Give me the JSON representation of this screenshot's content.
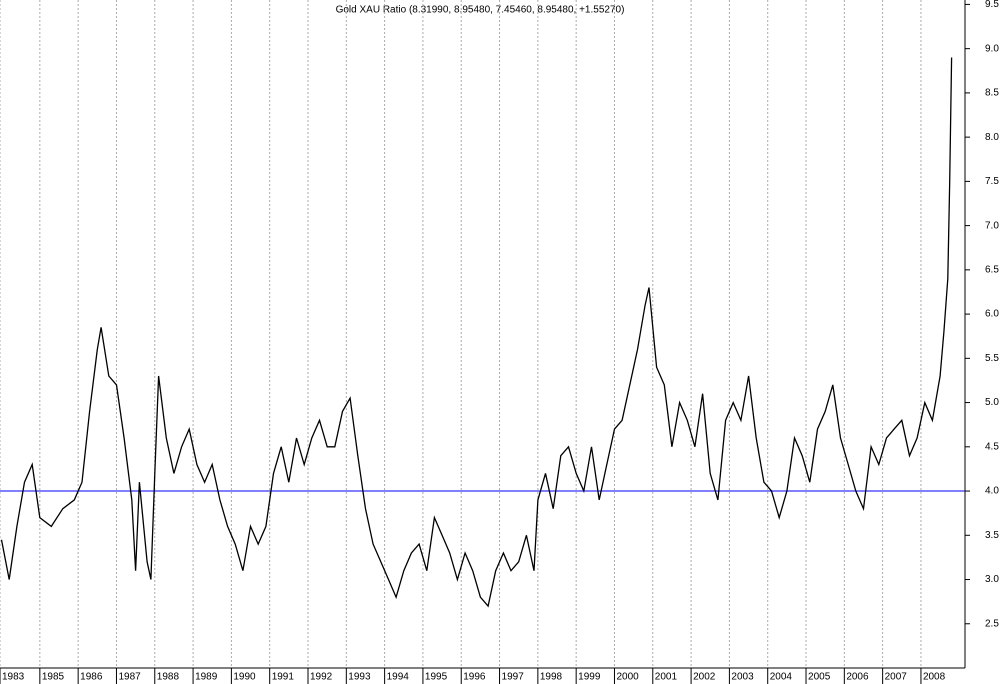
{
  "chart_data": {
    "type": "line",
    "title": "Gold XAU Ratio (8.31990, 8.95480, 7.45460, 8.95480, +1.55270)",
    "x": [
      1984.0,
      1984.2,
      1984.4,
      1984.6,
      1984.8,
      1985.0,
      1985.3,
      1985.6,
      1985.9,
      1986.1,
      1986.3,
      1986.5,
      1986.6,
      1986.8,
      1987.0,
      1987.2,
      1987.4,
      1987.5,
      1987.6,
      1987.8,
      1987.9,
      1988.0,
      1988.1,
      1988.3,
      1988.5,
      1988.7,
      1988.9,
      1989.1,
      1989.3,
      1989.5,
      1989.7,
      1989.9,
      1990.1,
      1990.3,
      1990.5,
      1990.7,
      1990.9,
      1991.1,
      1991.3,
      1991.5,
      1991.7,
      1991.9,
      1992.1,
      1992.3,
      1992.5,
      1992.7,
      1992.9,
      1993.1,
      1993.3,
      1993.5,
      1993.7,
      1993.9,
      1994.1,
      1994.3,
      1994.5,
      1994.7,
      1994.9,
      1995.1,
      1995.3,
      1995.5,
      1995.7,
      1995.9,
      1996.1,
      1996.3,
      1996.5,
      1996.7,
      1996.9,
      1997.1,
      1997.3,
      1997.5,
      1997.7,
      1997.9,
      1998.0,
      1998.2,
      1998.4,
      1998.6,
      1998.8,
      1999.0,
      1999.2,
      1999.4,
      1999.6,
      1999.8,
      2000.0,
      2000.2,
      2000.4,
      2000.6,
      2000.8,
      2000.9,
      2001.1,
      2001.3,
      2001.5,
      2001.7,
      2001.9,
      2002.1,
      2002.3,
      2002.5,
      2002.7,
      2002.9,
      2003.1,
      2003.3,
      2003.5,
      2003.7,
      2003.9,
      2004.1,
      2004.3,
      2004.5,
      2004.7,
      2004.9,
      2005.1,
      2005.3,
      2005.5,
      2005.7,
      2005.9,
      2006.1,
      2006.3,
      2006.5,
      2006.7,
      2006.9,
      2007.1,
      2007.3,
      2007.5,
      2007.7,
      2007.9,
      2008.1,
      2008.3,
      2008.5,
      2008.6,
      2008.7,
      2008.75,
      2008.8
    ],
    "values": [
      3.45,
      3.0,
      3.6,
      4.1,
      4.3,
      3.7,
      3.6,
      3.8,
      3.9,
      4.1,
      4.9,
      5.6,
      5.85,
      5.3,
      5.2,
      4.6,
      3.9,
      3.1,
      4.1,
      3.2,
      3.0,
      4.2,
      5.3,
      4.6,
      4.2,
      4.5,
      4.7,
      4.3,
      4.1,
      4.3,
      3.9,
      3.6,
      3.4,
      3.1,
      3.6,
      3.4,
      3.6,
      4.2,
      4.5,
      4.1,
      4.6,
      4.3,
      4.6,
      4.8,
      4.5,
      4.5,
      4.9,
      5.05,
      4.4,
      3.8,
      3.4,
      3.2,
      3.0,
      2.8,
      3.1,
      3.3,
      3.4,
      3.1,
      3.7,
      3.5,
      3.3,
      3.0,
      3.3,
      3.1,
      2.8,
      2.7,
      3.1,
      3.3,
      3.1,
      3.2,
      3.5,
      3.1,
      3.9,
      4.2,
      3.8,
      4.4,
      4.5,
      4.2,
      4.0,
      4.5,
      3.9,
      4.3,
      4.7,
      4.8,
      5.2,
      5.6,
      6.1,
      6.3,
      5.4,
      5.2,
      4.5,
      5.0,
      4.8,
      4.5,
      5.1,
      4.2,
      3.9,
      4.8,
      5.0,
      4.8,
      5.3,
      4.6,
      4.1,
      4.0,
      3.7,
      4.0,
      4.6,
      4.4,
      4.1,
      4.7,
      4.9,
      5.2,
      4.6,
      4.3,
      4.0,
      3.8,
      4.5,
      4.3,
      4.6,
      4.7,
      4.8,
      4.4,
      4.6,
      5.0,
      4.8,
      5.3,
      5.8,
      6.4,
      7.5,
      8.9
    ],
    "color": "#000000",
    "xlim": [
      1983.96,
      2009.15
    ],
    "xticks": [
      {
        "value": 1983.96,
        "label": "1983"
      },
      1985,
      1986,
      1987,
      1988,
      1989,
      1990,
      1991,
      1992,
      1993,
      1994,
      1995,
      1996,
      1997,
      1998,
      1999,
      2000,
      2001,
      2002,
      2003,
      2004,
      2005,
      2006,
      2007,
      2008
    ],
    "ylim": [
      2.0,
      9.55
    ],
    "yticks": [
      {
        "value": 2.5,
        "label": "2.5"
      },
      {
        "value": 3,
        "label": "3.0"
      },
      {
        "value": 3.5,
        "label": "3.5"
      },
      {
        "value": 4,
        "label": "4.0"
      },
      {
        "value": 4.5,
        "label": "4.5"
      },
      {
        "value": 5,
        "label": "5.0"
      },
      {
        "value": 5.5,
        "label": "5.5"
      },
      {
        "value": 6,
        "label": "6.0"
      },
      {
        "value": 6.5,
        "label": "6.5"
      },
      {
        "value": 7,
        "label": "7.0"
      },
      {
        "value": 7.5,
        "label": "7.5"
      },
      {
        "value": 8,
        "label": "8.0"
      },
      {
        "value": 8.5,
        "label": "8.5"
      },
      {
        "value": 9,
        "label": "9.0"
      },
      {
        "value": 9.5,
        "label": "9.5"
      }
    ],
    "grid": true,
    "hline": {
      "value": 4.0,
      "color": "#0000ff"
    }
  }
}
